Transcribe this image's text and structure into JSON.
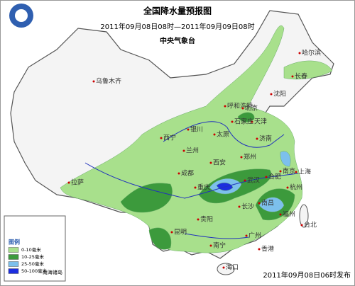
{
  "header": {
    "title": "全国降水量预报图",
    "period": "2011年09月08日08时—2011年09月09日08时",
    "issuer": "中央气象台"
  },
  "legend": {
    "title": "图例",
    "items": [
      {
        "label": "0-10毫米",
        "color": "#a8e08c"
      },
      {
        "label": "10-25毫米",
        "color": "#3c9a3c"
      },
      {
        "label": "25-50毫米",
        "color": "#7cc0ec"
      },
      {
        "label": "50-100毫米",
        "color": "#1c2ee0"
      }
    ]
  },
  "inset": {
    "label": "南海诸岛"
  },
  "footer": "2011年09月08日06时发布",
  "cities": [
    "乌鲁木齐",
    "哈尔滨",
    "长春",
    "沈阳",
    "呼和浩特",
    "北京",
    "天津",
    "石家庄",
    "太原",
    "银川",
    "西宁",
    "兰州",
    "济南",
    "郑州",
    "西安",
    "南京",
    "合肥",
    "上海",
    "成都",
    "武汉",
    "杭州",
    "拉萨",
    "重庆",
    "长沙",
    "南昌",
    "贵阳",
    "福州",
    "台北",
    "昆明",
    "广州",
    "南宁",
    "香港",
    "海口"
  ]
}
